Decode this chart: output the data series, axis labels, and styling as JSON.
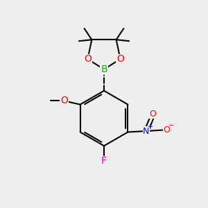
{
  "background_color": "#eeeeee",
  "bond_color": "#000000",
  "atom_colors": {
    "B": "#00bb00",
    "O": "#ff0000",
    "N": "#0000ff",
    "F": "#cc00cc",
    "C": "#000000"
  },
  "figsize": [
    3.0,
    3.0
  ],
  "dpi": 100
}
